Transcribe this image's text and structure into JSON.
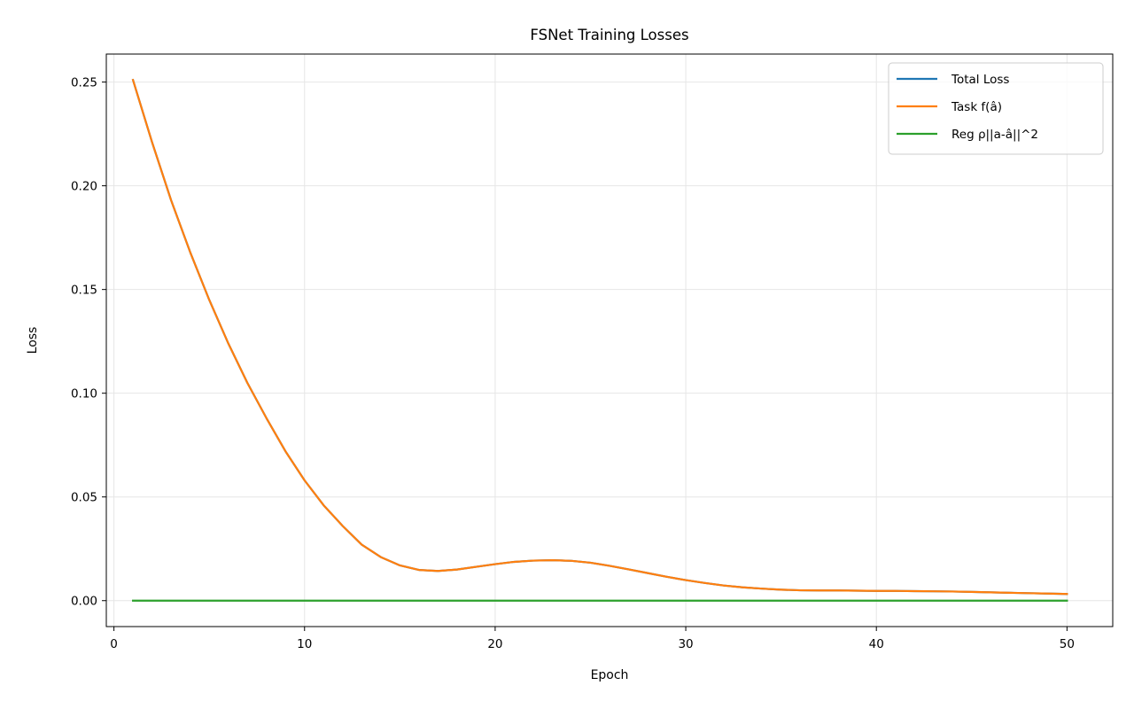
{
  "chart_data": {
    "type": "line",
    "title": "FSNet Training Losses",
    "xlabel": "Epoch",
    "ylabel": "Loss",
    "xlim": [
      -0.4,
      52.4
    ],
    "ylim": [
      -0.0125,
      0.2635
    ],
    "xticks": [
      0,
      10,
      20,
      30,
      40,
      50
    ],
    "xtick_labels": [
      "0",
      "10",
      "20",
      "30",
      "40",
      "50"
    ],
    "yticks": [
      0.0,
      0.05,
      0.1,
      0.15,
      0.2,
      0.25
    ],
    "ytick_labels": [
      "0.00",
      "0.05",
      "0.10",
      "0.15",
      "0.20",
      "0.25"
    ],
    "grid": true,
    "legend_position": "top-right",
    "x": [
      1,
      2,
      3,
      4,
      5,
      6,
      7,
      8,
      9,
      10,
      11,
      12,
      13,
      14,
      15,
      16,
      17,
      18,
      19,
      20,
      21,
      22,
      23,
      24,
      25,
      26,
      27,
      28,
      29,
      30,
      31,
      32,
      33,
      34,
      35,
      36,
      37,
      38,
      39,
      40,
      41,
      42,
      43,
      44,
      45,
      46,
      47,
      48,
      49,
      50
    ],
    "series": [
      {
        "name": "Total Loss",
        "color": "#1f77b4",
        "values": [
          0.251,
          0.221,
          0.193,
          0.168,
          0.145,
          0.124,
          0.105,
          0.088,
          0.072,
          0.058,
          0.046,
          0.036,
          0.027,
          0.021,
          0.017,
          0.0148,
          0.0143,
          0.015,
          0.0163,
          0.0176,
          0.0187,
          0.0193,
          0.0195,
          0.0192,
          0.0183,
          0.0168,
          0.0151,
          0.0133,
          0.0115,
          0.0099,
          0.0085,
          0.0073,
          0.0064,
          0.0058,
          0.0053,
          0.005,
          0.0049,
          0.0049,
          0.0048,
          0.0047,
          0.0047,
          0.0046,
          0.0045,
          0.0044,
          0.0042,
          0.004,
          0.0038,
          0.0036,
          0.0034,
          0.0032
        ]
      },
      {
        "name": "Task f(â)",
        "color": "#ff7f0e",
        "values": [
          0.251,
          0.221,
          0.193,
          0.168,
          0.145,
          0.124,
          0.105,
          0.088,
          0.072,
          0.058,
          0.046,
          0.036,
          0.027,
          0.021,
          0.017,
          0.0148,
          0.0143,
          0.015,
          0.0163,
          0.0176,
          0.0187,
          0.0193,
          0.0195,
          0.0192,
          0.0183,
          0.0168,
          0.0151,
          0.0133,
          0.0115,
          0.0099,
          0.0085,
          0.0073,
          0.0064,
          0.0058,
          0.0053,
          0.005,
          0.0049,
          0.0049,
          0.0048,
          0.0047,
          0.0047,
          0.0046,
          0.0045,
          0.0044,
          0.0042,
          0.004,
          0.0038,
          0.0036,
          0.0034,
          0.0032
        ]
      },
      {
        "name": "Reg ρ||a-â||^2",
        "color": "#2ca02c",
        "values": [
          0,
          0,
          0,
          0,
          0,
          0,
          0,
          0,
          0,
          0,
          0,
          0,
          0,
          0,
          0,
          0,
          0,
          0,
          0,
          0,
          0,
          0,
          0,
          0,
          0,
          0,
          0,
          0,
          0,
          0,
          0,
          0,
          0,
          0,
          0,
          0,
          0,
          0,
          0,
          0,
          0,
          0,
          0,
          0,
          0,
          0,
          0,
          0,
          0,
          0
        ]
      }
    ]
  }
}
